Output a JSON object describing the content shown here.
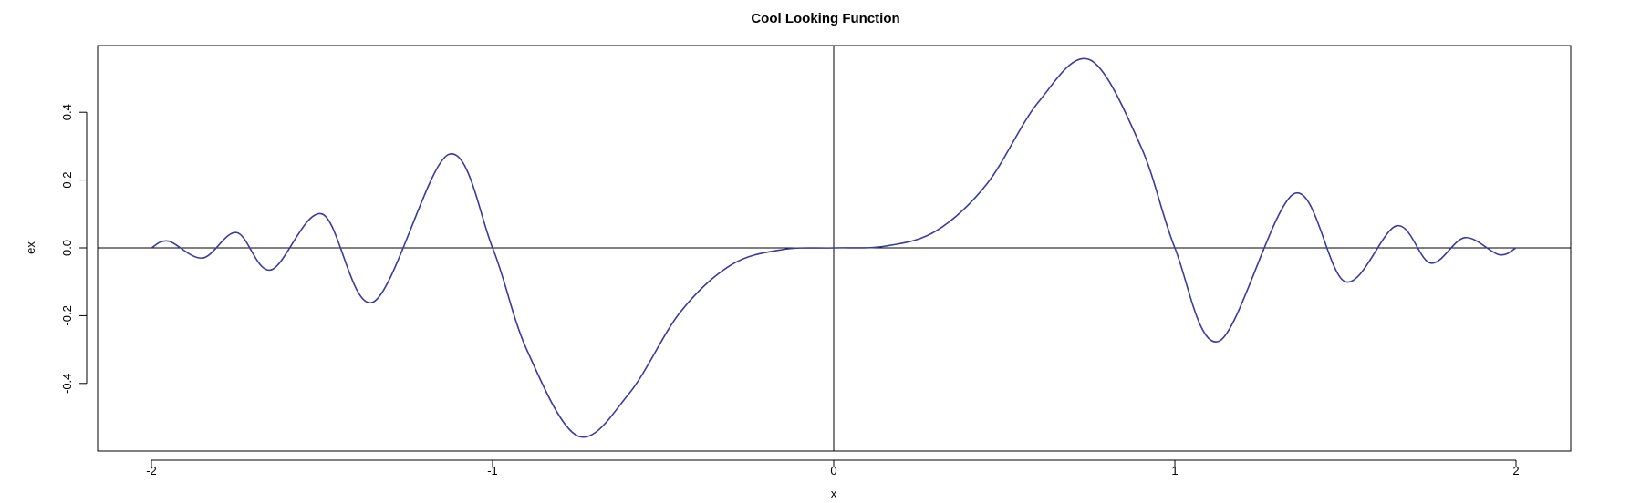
{
  "chart_data": {
    "type": "line",
    "title": "Cool Looking Function",
    "xlabel": "x",
    "ylabel": "ex",
    "xlim": [
      -2,
      2
    ],
    "ylim": [
      -0.55,
      0.55
    ],
    "x_ticks": [
      -2,
      -1,
      0,
      1,
      2
    ],
    "y_ticks": [
      -0.4,
      -0.2,
      0.0,
      0.2,
      0.4
    ],
    "x_tick_labels": [
      "-2",
      "-1",
      "0",
      "1",
      "2"
    ],
    "y_tick_labels": [
      "-0.4",
      "-0.2",
      "0.0",
      "0.2",
      "0.4"
    ],
    "reference_lines": {
      "horizontal": 0,
      "vertical": 0
    },
    "grid": false,
    "line_color": "#3a3aa0",
    "series": [
      {
        "x": [
          -2.0,
          -1.95,
          -1.85,
          -1.75,
          -1.65,
          -1.5,
          -1.35,
          -1.13,
          -1.0,
          -0.9,
          -0.75,
          -0.6,
          -0.45,
          -0.3,
          -0.15,
          0.0,
          0.15,
          0.3,
          0.45,
          0.6,
          0.75,
          0.9,
          1.0,
          1.13,
          1.35,
          1.5,
          1.65,
          1.75,
          1.85,
          1.95,
          2.0
        ],
        "y": [
          0.0,
          0.02,
          -0.03,
          0.045,
          -0.065,
          0.1,
          -0.16,
          0.275,
          0.0,
          -0.3,
          -0.555,
          -0.43,
          -0.19,
          -0.05,
          -0.005,
          0.0,
          0.005,
          0.05,
          0.19,
          0.43,
          0.555,
          0.3,
          0.0,
          -0.275,
          0.16,
          -0.1,
          0.065,
          -0.045,
          0.03,
          -0.02,
          0.0
        ]
      }
    ]
  }
}
